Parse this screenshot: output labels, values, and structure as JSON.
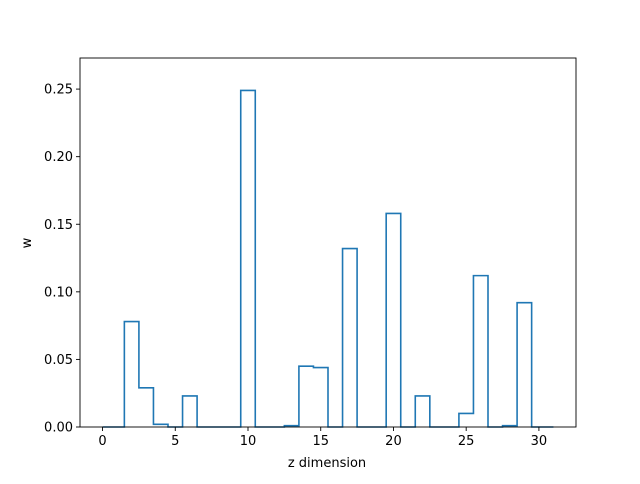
{
  "chart_data": {
    "type": "step",
    "xlabel": "z dimension",
    "ylabel": "w",
    "xlim": [
      -1.55,
      32.55
    ],
    "ylim": [
      0,
      0.273
    ],
    "x_ticks": [
      0,
      5,
      10,
      15,
      20,
      25,
      30
    ],
    "y_ticks": [
      0.0,
      0.05,
      0.1,
      0.15,
      0.2,
      0.25
    ],
    "x_tick_labels": [
      "0",
      "5",
      "10",
      "15",
      "20",
      "25",
      "30"
    ],
    "y_tick_labels": [
      "0.00",
      "0.05",
      "0.10",
      "0.15",
      "0.20",
      "0.25"
    ],
    "grid": false,
    "legend": "none",
    "series": [
      {
        "color": "#1f77b4",
        "step_where": "mid",
        "x": [
          0,
          1,
          2,
          3,
          4,
          5,
          6,
          7,
          8,
          9,
          10,
          11,
          12,
          13,
          14,
          15,
          16,
          17,
          18,
          19,
          20,
          21,
          22,
          23,
          24,
          25,
          26,
          27,
          28,
          29,
          30,
          31
        ],
        "values": [
          0.0,
          0.0,
          0.078,
          0.029,
          0.002,
          0.0,
          0.023,
          0.0,
          0.0,
          0.0,
          0.249,
          0.0,
          0.0,
          0.001,
          0.045,
          0.044,
          0.0,
          0.132,
          0.0,
          0.0,
          0.158,
          0.0,
          0.023,
          0.0,
          0.0,
          0.01,
          0.112,
          0.0,
          0.001,
          0.092,
          0.0,
          0.0
        ]
      }
    ]
  }
}
